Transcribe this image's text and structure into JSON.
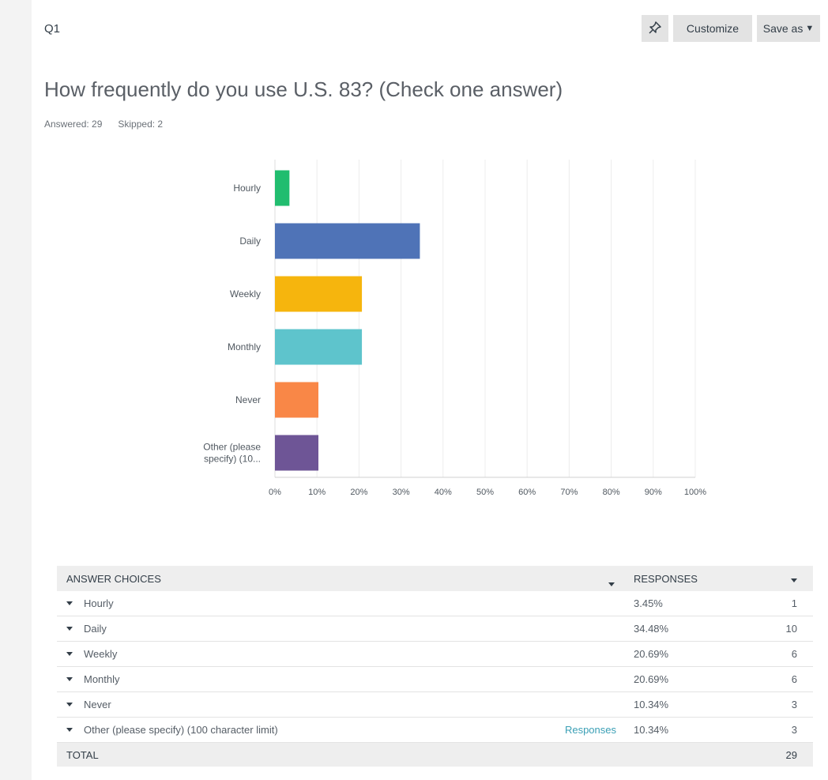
{
  "question": {
    "id": "Q1",
    "title": "How frequently do you use U.S. 83? (Check one answer)",
    "answered": "Answered: 29",
    "skipped": "Skipped: 2"
  },
  "toolbar": {
    "pin_icon": "pin-icon",
    "customize_label": "Customize",
    "save_as_label": "Save as"
  },
  "chart_data": {
    "type": "bar",
    "orientation": "horizontal",
    "categories": [
      "Hourly",
      "Daily",
      "Weekly",
      "Monthly",
      "Never",
      "Other (please specify) (10..."
    ],
    "values": [
      3.45,
      34.48,
      20.69,
      20.69,
      10.34,
      10.34
    ],
    "colors": [
      "#21bd6f",
      "#4f73b7",
      "#f6b50d",
      "#5ec4cc",
      "#f98747",
      "#6e5596"
    ],
    "xlim": [
      0,
      100
    ],
    "xticks": [
      "0%",
      "10%",
      "20%",
      "30%",
      "40%",
      "50%",
      "60%",
      "70%",
      "80%",
      "90%",
      "100%"
    ],
    "grid": true
  },
  "table": {
    "headers": {
      "choices": "ANSWER CHOICES",
      "responses": "RESPONSES"
    },
    "rows": [
      {
        "choice": "Hourly",
        "percent": "3.45%",
        "count": "1"
      },
      {
        "choice": "Daily",
        "percent": "34.48%",
        "count": "10"
      },
      {
        "choice": "Weekly",
        "percent": "20.69%",
        "count": "6"
      },
      {
        "choice": "Monthly",
        "percent": "20.69%",
        "count": "6"
      },
      {
        "choice": "Never",
        "percent": "10.34%",
        "count": "3"
      },
      {
        "choice": "Other (please specify) (100 character limit)",
        "percent": "10.34%",
        "count": "3",
        "link": "Responses"
      }
    ],
    "total_label": "TOTAL",
    "total_count": "29"
  }
}
